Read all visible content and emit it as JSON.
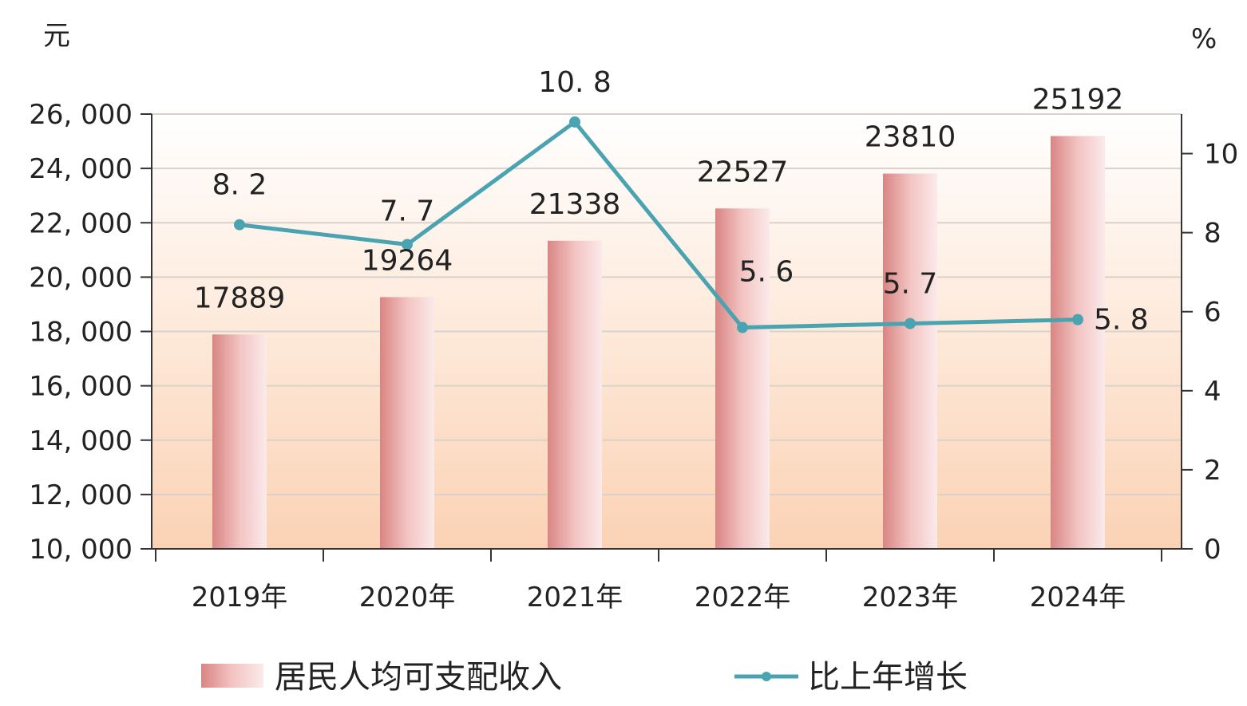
{
  "chart_data": {
    "type": "bar+line",
    "categories": [
      "2019年",
      "2020年",
      "2021年",
      "2022年",
      "2023年",
      "2024年"
    ],
    "series": [
      {
        "name": "居民人均可支配收入",
        "type": "bar",
        "axis": "left",
        "values": [
          17889,
          19264,
          21338,
          22527,
          23810,
          25192
        ],
        "labels": [
          "17889",
          "19264",
          "21338",
          "22527",
          "23810",
          "25192"
        ],
        "color": "#e8a3a1"
      },
      {
        "name": "比上年增长",
        "type": "line",
        "axis": "right",
        "values": [
          8.2,
          7.7,
          10.8,
          5.6,
          5.7,
          5.8
        ],
        "labels": [
          "8. 2",
          "7. 7",
          "10. 8",
          "5. 6",
          "5. 7",
          "5. 8"
        ],
        "color": "#4aa3b0"
      }
    ],
    "left_axis": {
      "unit": "元",
      "ylim": [
        10000,
        26000
      ],
      "ticks": [
        10000,
        12000,
        14000,
        16000,
        18000,
        20000,
        22000,
        24000,
        26000
      ],
      "tick_labels": [
        "10, 000",
        "12, 000",
        "14, 000",
        "16, 000",
        "18, 000",
        "20, 000",
        "22, 000",
        "24, 000",
        "26, 000"
      ]
    },
    "right_axis": {
      "unit": "%",
      "ylim": [
        0,
        11
      ],
      "ticks": [
        0,
        2,
        4,
        6,
        8,
        10
      ],
      "tick_labels": [
        "0",
        "2",
        "4",
        "6",
        "8",
        "10"
      ]
    },
    "grid": true,
    "legend_position": "bottom",
    "background_gradient": [
      "#ffffff",
      "#fde7d6",
      "#fbd2b4"
    ]
  }
}
